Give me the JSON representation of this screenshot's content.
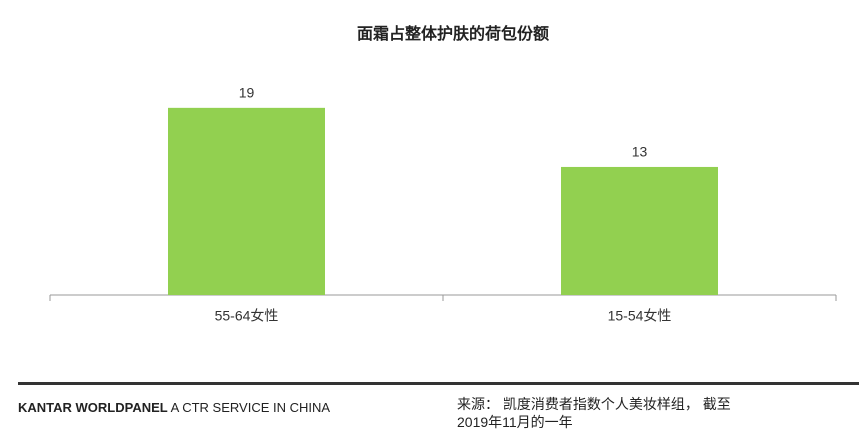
{
  "chart_data": {
    "type": "bar",
    "title": "面霜占整体护肤的荷包份额",
    "categories": [
      "55-64女性",
      "15-54女性"
    ],
    "values": [
      19,
      13
    ],
    "color": "#92d050"
  },
  "footer": {
    "brand_bold": "KANTAR WORLDPANEL",
    "brand_rest": "A CTR SERVICE IN CHINA",
    "source": [
      "来源： 凯度消费者指数个人美妆样组， 截至",
      "2019年11月的一年"
    ]
  }
}
